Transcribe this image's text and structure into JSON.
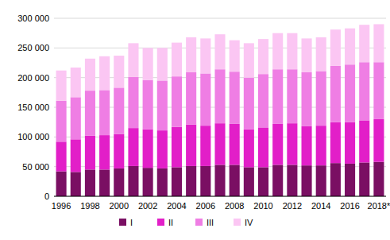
{
  "chart_data": {
    "type": "bar",
    "stacked": true,
    "grid": true,
    "legend": "bottom",
    "categories": [
      "1996",
      null,
      "1998",
      null,
      "2000",
      null,
      "2002",
      null,
      "2004",
      null,
      "2006",
      null,
      "2008",
      null,
      "2010",
      null,
      "2012",
      null,
      "2014",
      null,
      "2016",
      null,
      "2018*"
    ],
    "series": [
      {
        "name": "I",
        "color": "#7a0f63",
        "values": [
          42000,
          41000,
          45000,
          45000,
          47000,
          51000,
          48000,
          47000,
          49000,
          51000,
          51000,
          53000,
          53000,
          49000,
          49000,
          53000,
          53000,
          52000,
          52000,
          56000,
          55000,
          57000,
          58000
        ]
      },
      {
        "name": "II",
        "color": "#e21fc8",
        "values": [
          50000,
          55000,
          57000,
          58000,
          58000,
          64000,
          65000,
          64000,
          68000,
          70000,
          68000,
          70000,
          69000,
          64000,
          67000,
          69000,
          70000,
          66000,
          67000,
          69000,
          70000,
          71000,
          72000
        ]
      },
      {
        "name": "III",
        "color": "#ef7ee4",
        "values": [
          69000,
          71000,
          76000,
          76000,
          78000,
          86000,
          83000,
          84000,
          85000,
          88000,
          88000,
          91000,
          88000,
          87000,
          90000,
          92000,
          91000,
          91000,
          92000,
          95000,
          97000,
          98000,
          96000
        ]
      },
      {
        "name": "IV",
        "color": "#fbc6f3",
        "values": [
          51000,
          50000,
          54000,
          57000,
          54000,
          57000,
          54000,
          55000,
          57000,
          59000,
          59000,
          59000,
          53000,
          58000,
          59000,
          61000,
          61000,
          57000,
          57000,
          61000,
          61000,
          63000,
          64000
        ]
      }
    ],
    "ylim": [
      0,
      300000
    ],
    "yticks": [
      0,
      {
        "value": 50000,
        "label": "50 000"
      },
      {
        "value": 100000,
        "label": "100 000"
      },
      {
        "value": 150000,
        "label": "150 000"
      },
      {
        "value": 200000,
        "label": "200 000"
      },
      {
        "value": 250000,
        "label": "250 000"
      },
      {
        "value": 300000,
        "label": "300 000"
      }
    ]
  }
}
